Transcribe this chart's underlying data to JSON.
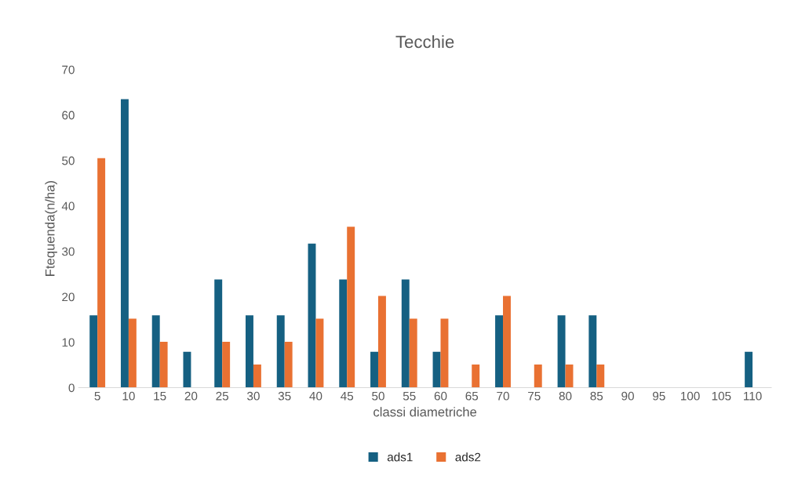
{
  "chart_data": {
    "type": "bar",
    "title": "Tecchie",
    "xlabel": "classi diametriche",
    "ylabel": "Ftequenda(n/ha)",
    "categories": [
      "5",
      "10",
      "15",
      "20",
      "25",
      "30",
      "35",
      "40",
      "45",
      "50",
      "55",
      "60",
      "65",
      "70",
      "75",
      "80",
      "85",
      "90",
      "95",
      "100",
      "105",
      "110"
    ],
    "series": [
      {
        "name": "ads1",
        "color": "#156082",
        "values": [
          15.9,
          63.5,
          15.9,
          7.9,
          23.8,
          15.9,
          15.9,
          31.7,
          23.8,
          7.9,
          23.8,
          7.9,
          null,
          15.9,
          null,
          15.9,
          15.9,
          null,
          null,
          null,
          null,
          7.9
        ]
      },
      {
        "name": "ads2",
        "color": "#e97132",
        "values": [
          50.5,
          15.2,
          10.1,
          null,
          10.1,
          5.1,
          10.1,
          15.2,
          35.4,
          20.2,
          15.2,
          15.2,
          5.1,
          20.2,
          5.1,
          5.1,
          5.1,
          null,
          null,
          null,
          null,
          null
        ]
      }
    ],
    "ylim": [
      0,
      70
    ],
    "yticks": [
      0,
      10,
      20,
      30,
      40,
      50,
      60,
      70
    ],
    "grid": false,
    "legend": "bottom"
  }
}
